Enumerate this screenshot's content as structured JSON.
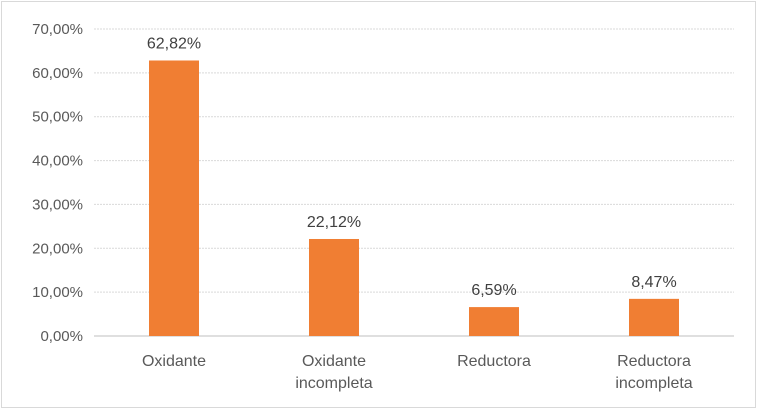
{
  "chart_data": {
    "type": "bar",
    "title": "",
    "xlabel": "",
    "ylabel": "",
    "ylim": [
      0,
      70
    ],
    "y_ticks": [
      "0,00%",
      "10,00%",
      "20,00%",
      "30,00%",
      "40,00%",
      "50,00%",
      "60,00%",
      "70,00%"
    ],
    "categories": [
      [
        "Oxidante"
      ],
      [
        "Oxidante",
        "incompleta"
      ],
      [
        "Reductora"
      ],
      [
        "Reductora",
        "incompleta"
      ]
    ],
    "values": [
      62.82,
      22.12,
      6.59,
      8.47
    ],
    "data_labels": [
      "62,82%",
      "22,12%",
      "6,59%",
      "8,47%"
    ],
    "bar_color": "#f07e33",
    "grid": true,
    "legend": "none"
  }
}
